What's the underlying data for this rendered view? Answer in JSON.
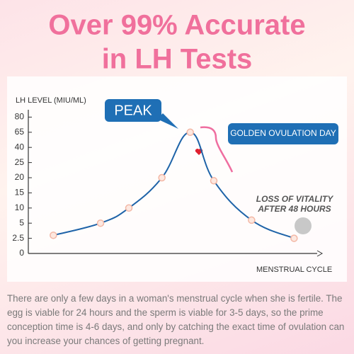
{
  "chart_data": {
    "type": "line",
    "title": [
      "Over 99% Accurate",
      "in LH Tests"
    ],
    "y_label": "LH LEVEL (MIU/ML)",
    "x_label": "MENSTRUAL CYCLE",
    "yticks": [
      0,
      2.5,
      5,
      10,
      15,
      20,
      25,
      40,
      65,
      80
    ],
    "ylim": [
      0,
      80
    ],
    "xlim": [
      0,
      30
    ],
    "x": [
      2.5,
      7.5,
      10.5,
      14,
      17,
      19.5,
      23.5,
      28
    ],
    "series": [
      {
        "name": null,
        "color": "#1e63a8",
        "values": [
          3,
          5,
          10,
          20,
          65,
          19,
          6,
          2.5
        ]
      }
    ],
    "annotations": {
      "peak": "PEAK",
      "golden": "GOLDEN OVULATION DAY",
      "loss": [
        "LOSS OF VITALITY",
        "AFTER 48 HOURS"
      ]
    }
  },
  "description": "There are only a few days in a woman's menstrual cycle when she is fertile. The egg is viable for 24 hours and the sperm is viable for 3-5 days, so the prime conception time is 4-6 days, and only by catching the exact time of ovulation can you increase your chances of getting pregnant."
}
